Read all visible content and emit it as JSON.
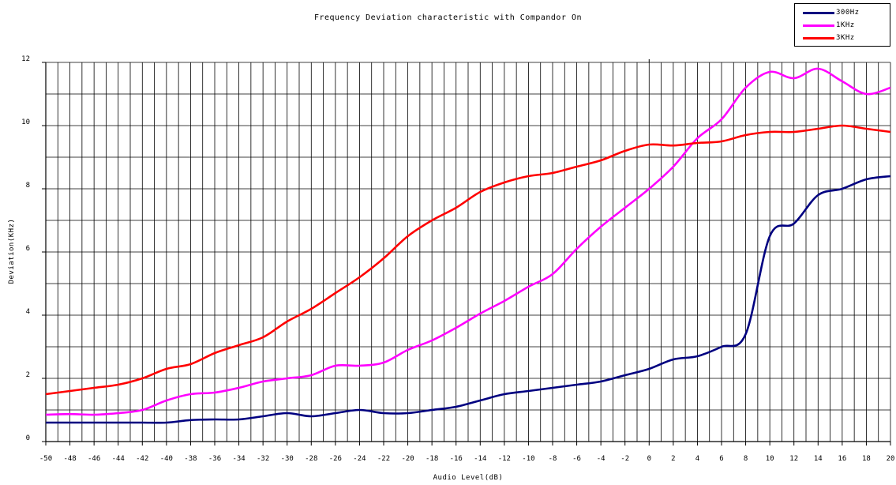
{
  "chart_data": {
    "type": "line",
    "title": "Frequency Deviation characteristic with Compandor On",
    "xlabel": "Audio Level(dB)",
    "ylabel": "Deviation(KHz)",
    "xlim": [
      -50,
      20
    ],
    "ylim": [
      0,
      12
    ],
    "x_ticks": [
      -50,
      -48,
      -46,
      -44,
      -42,
      -40,
      -38,
      -36,
      -34,
      -32,
      -30,
      -28,
      -26,
      -24,
      -22,
      -20,
      -18,
      -16,
      -14,
      -12,
      -10,
      -8,
      -6,
      -4,
      -2,
      0,
      2,
      4,
      6,
      8,
      10,
      12,
      14,
      16,
      18,
      20
    ],
    "y_ticks": [
      0,
      2,
      4,
      6,
      8,
      10,
      12
    ],
    "grid": true,
    "legend_position": "top-right",
    "x": [
      -50,
      -48,
      -46,
      -44,
      -42,
      -40,
      -38,
      -36,
      -34,
      -32,
      -30,
      -28,
      -26,
      -24,
      -22,
      -20,
      -18,
      -16,
      -14,
      -12,
      -10,
      -8,
      -6,
      -4,
      -2,
      0,
      2,
      4,
      6,
      8,
      10,
      12,
      14,
      16,
      18,
      20
    ],
    "series": [
      {
        "name": "300Hz",
        "color": "#000080",
        "values": [
          0.6,
          0.6,
          0.6,
          0.6,
          0.6,
          0.6,
          0.68,
          0.7,
          0.7,
          0.8,
          0.9,
          0.8,
          0.9,
          1.0,
          0.9,
          0.9,
          1.0,
          1.1,
          1.3,
          1.5,
          1.6,
          1.7,
          1.8,
          1.9,
          2.1,
          2.3,
          2.6,
          2.7,
          3.0,
          3.4,
          6.5,
          6.9,
          7.8,
          8.0,
          8.3,
          8.4
        ]
      },
      {
        "name": "1KHz",
        "color": "#ff00ff",
        "values": [
          0.85,
          0.87,
          0.85,
          0.9,
          1.0,
          1.3,
          1.5,
          1.55,
          1.7,
          1.9,
          2.0,
          2.1,
          2.4,
          2.4,
          2.5,
          2.9,
          3.2,
          3.6,
          4.05,
          4.45,
          4.9,
          5.3,
          6.1,
          6.8,
          7.4,
          8.0,
          8.7,
          9.6,
          10.2,
          11.2,
          11.7,
          11.5,
          11.8,
          11.4,
          11.0,
          11.2
        ]
      },
      {
        "name": "3KHz",
        "color": "#ff0000",
        "values": [
          1.5,
          1.6,
          1.7,
          1.8,
          2.0,
          2.3,
          2.45,
          2.8,
          3.05,
          3.3,
          3.8,
          4.2,
          4.7,
          5.2,
          5.8,
          6.5,
          7.0,
          7.4,
          7.9,
          8.2,
          8.4,
          8.5,
          8.7,
          8.9,
          9.2,
          9.4,
          9.37,
          9.45,
          9.5,
          9.7,
          9.8,
          9.8,
          9.9,
          10.0,
          9.9,
          9.8
        ]
      }
    ]
  }
}
